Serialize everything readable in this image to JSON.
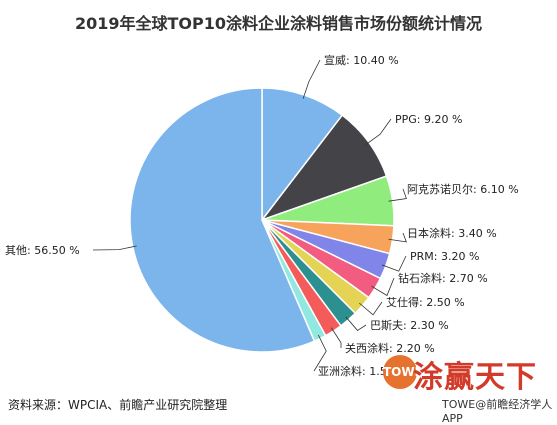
{
  "chart_data": {
    "type": "pie",
    "title": "2019年全球TOP10涂料企业涂料销售市场份额统计情况",
    "categories": [
      "宣威",
      "PPG",
      "阿克苏诺贝尔",
      "日本涂料",
      "PRM",
      "钻石涂料",
      "艾仕得",
      "巴斯夫",
      "关西涂料",
      "亚洲涂料",
      "其他"
    ],
    "values": [
      10.4,
      9.2,
      6.1,
      3.4,
      3.2,
      2.7,
      2.5,
      2.3,
      2.2,
      1.5,
      56.5
    ],
    "labels": [
      "宣威: 10.40 %",
      "PPG: 9.20 %",
      "阿克苏诺贝尔: 6.10 %",
      "日本涂料: 3.40 %",
      "PRM: 3.20 %",
      "钻石涂料: 2.70 %",
      "艾仕得: 2.50 %",
      "巴斯夫: 2.30 %",
      "关西涂料: 2.20 %",
      "亚洲涂料: 1.50 %",
      "其他: 56.50 %"
    ],
    "colors": [
      "#7cb5ec",
      "#434348",
      "#90ed7d",
      "#f7a35c",
      "#8085e9",
      "#f15c80",
      "#e4d354",
      "#2b908f",
      "#f45b5b",
      "#91e8e1",
      "#7cb5ec"
    ]
  },
  "footer": {
    "source": "资料来源：WPCIA、前瞻产业研究院整理",
    "app": "TOWE@前瞻经济学人APP"
  },
  "watermark": {
    "brand": "涂赢天下",
    "seal": "TOWE"
  }
}
